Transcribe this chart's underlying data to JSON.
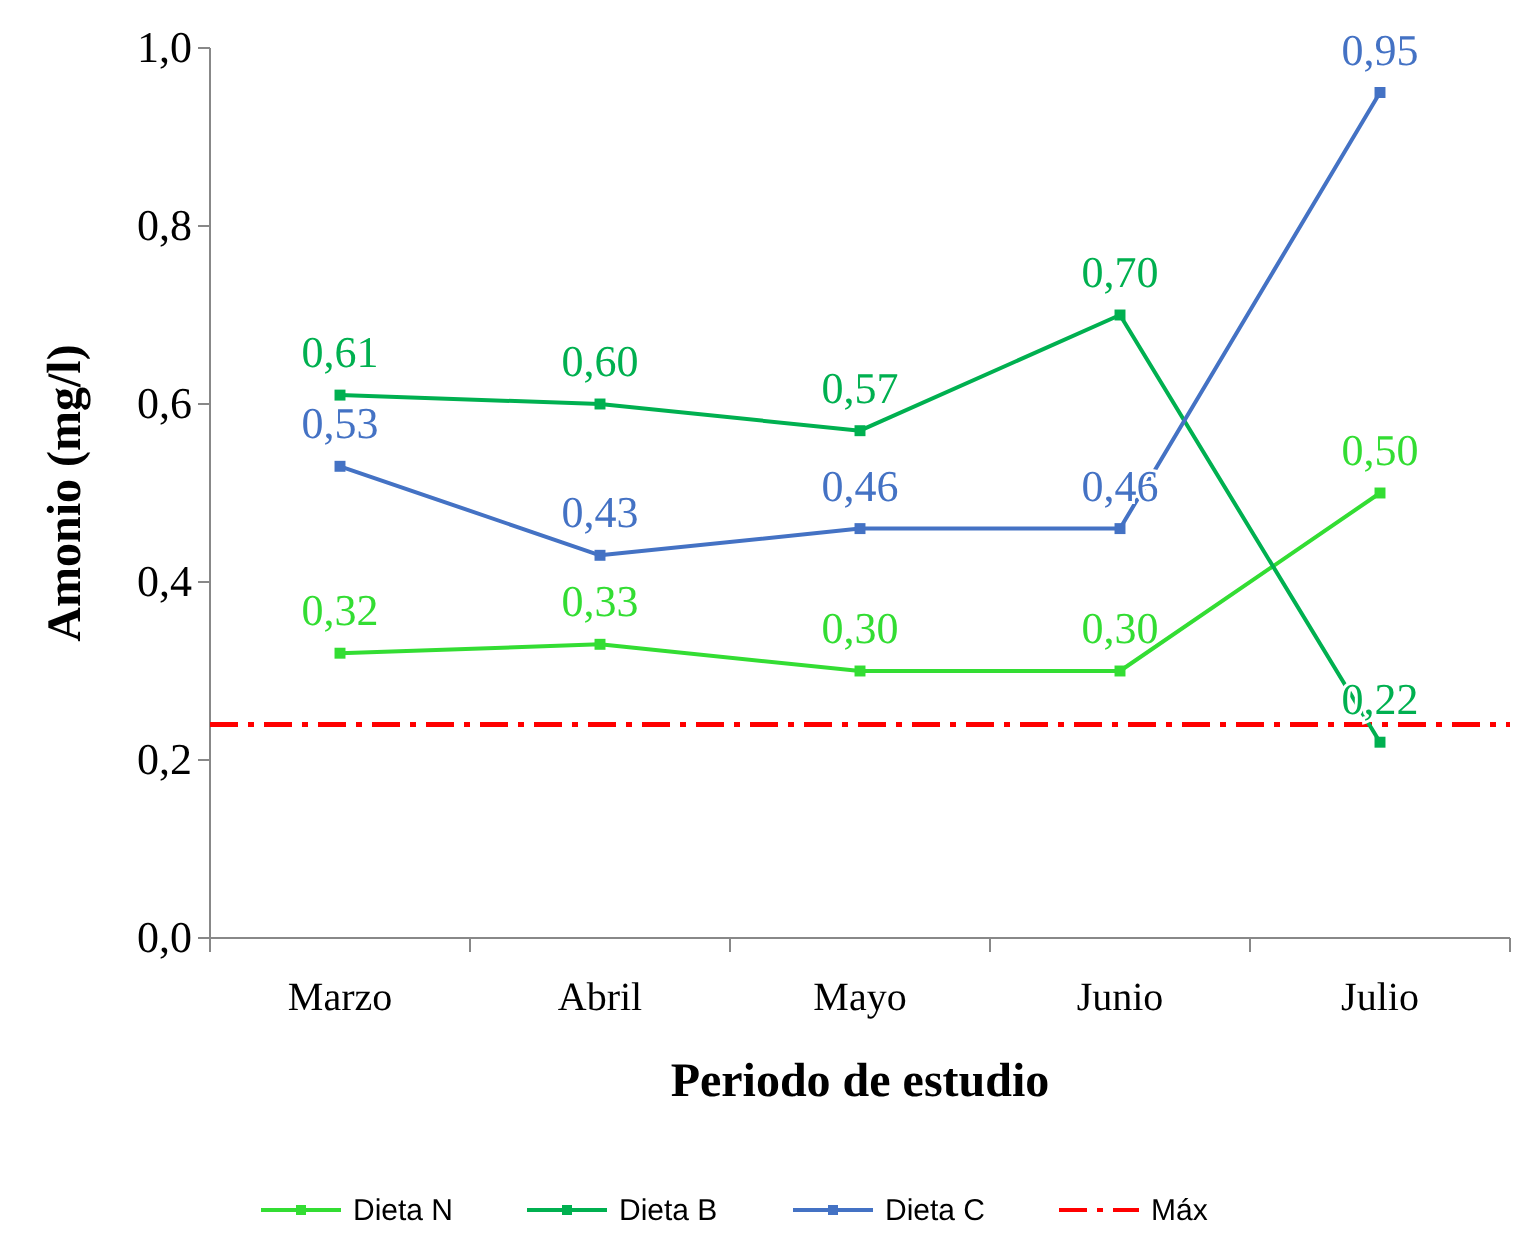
{
  "chart_data": {
    "type": "line",
    "xlabel": "Periodo de estudio",
    "ylabel": "Amonio (mg/l)",
    "categories": [
      "Marzo",
      "Abril",
      "Mayo",
      "Junio",
      "Julio"
    ],
    "series": [
      {
        "name": "Dieta N",
        "color": "#33dd33",
        "values": [
          0.32,
          0.33,
          0.3,
          0.3,
          0.5
        ],
        "value_labels": [
          "0,32",
          "0,33",
          "0,30",
          "0,30",
          "0,50"
        ]
      },
      {
        "name": "Dieta B",
        "color": "#00b050",
        "values": [
          0.61,
          0.6,
          0.57,
          0.7,
          0.22
        ],
        "value_labels": [
          "0,61",
          "0,60",
          "0,57",
          "0,70",
          "0,22"
        ]
      },
      {
        "name": "Dieta C",
        "color": "#4472c4",
        "values": [
          0.53,
          0.43,
          0.46,
          0.46,
          0.95
        ],
        "value_labels": [
          "0,53",
          "0,43",
          "0,46",
          "0,46",
          "0,95"
        ]
      }
    ],
    "ylim": [
      0,
      1
    ],
    "yticks": [
      {
        "value": 0,
        "label": "0,0"
      },
      {
        "value": 0.2,
        "label": "0,2"
      },
      {
        "value": 0.4,
        "label": "0,4"
      },
      {
        "value": 0.6,
        "label": "0,6"
      },
      {
        "value": 0.8,
        "label": "0,8"
      },
      {
        "value": 1,
        "label": "1,0"
      }
    ],
    "ref_lines": [
      {
        "axis": "y",
        "value": 0.24,
        "label": "Máx",
        "color": "#ff0000",
        "line_style": "dashed"
      }
    ],
    "marker": "square",
    "legend": "bottom",
    "grid": false
  }
}
